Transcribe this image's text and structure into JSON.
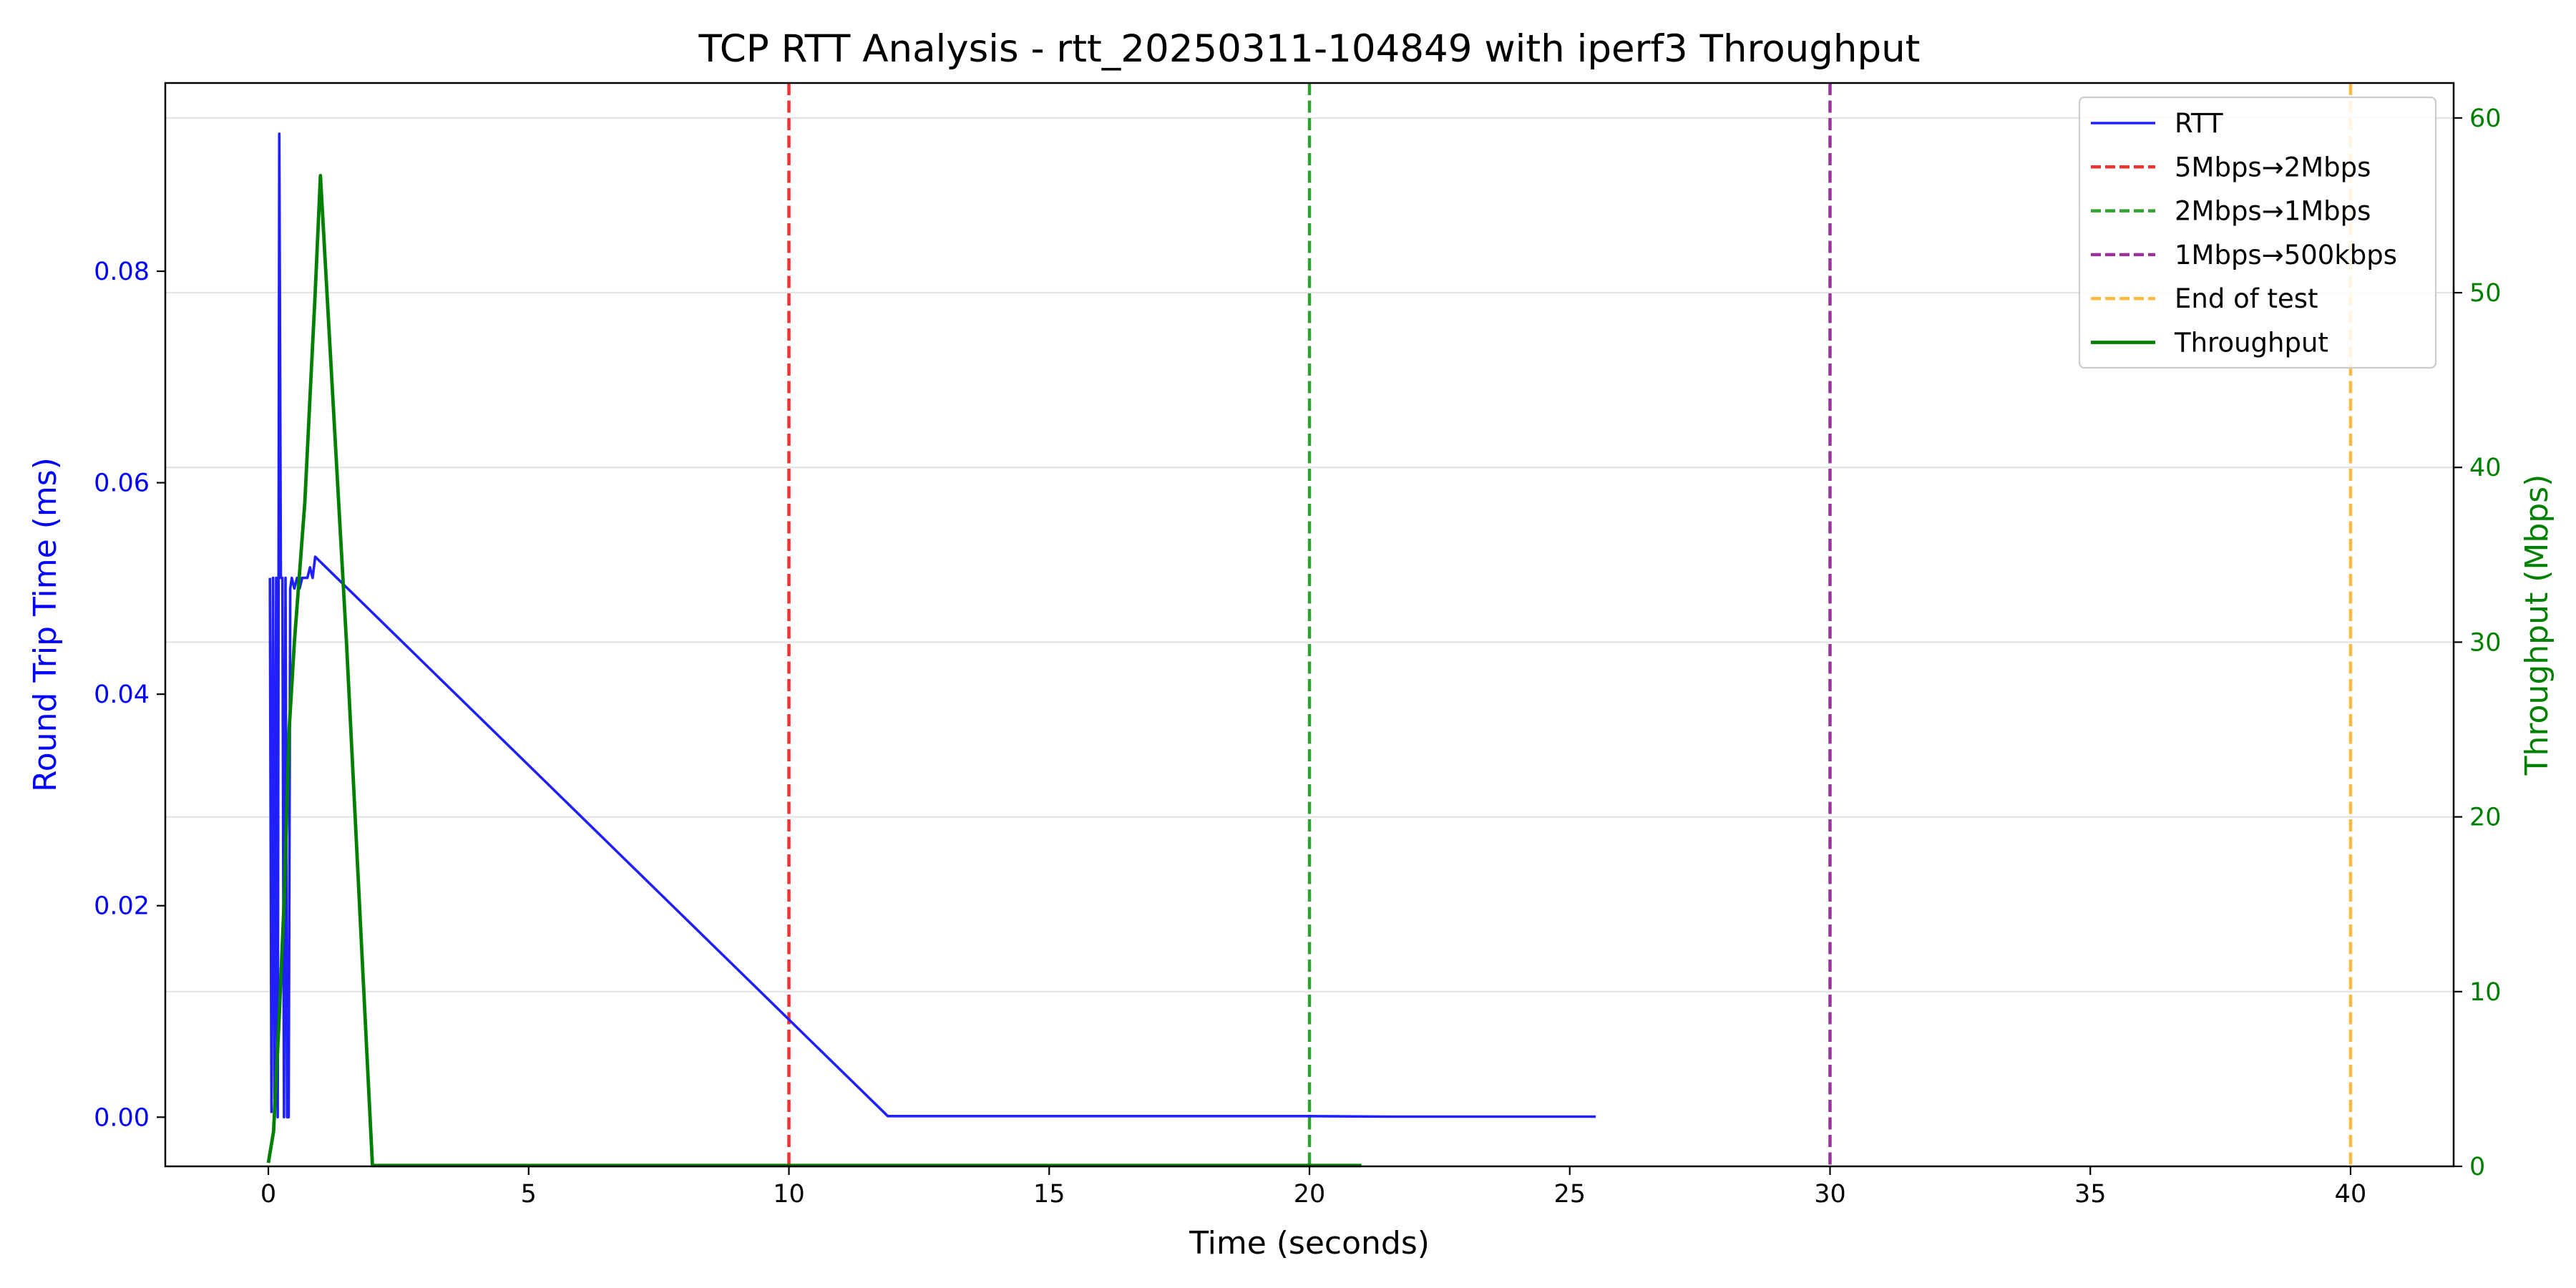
{
  "chart_data": {
    "type": "line",
    "title": "TCP RTT Analysis - rtt_20250311-104849 with iperf3 Throughput",
    "xlabel": "Time (seconds)",
    "ylabel_left": "Round Trip Time (ms)",
    "ylabel_right": "Throughput (Mbps)",
    "xlim": [
      -1.98,
      41.98
    ],
    "ylim_left": [
      -0.00465,
      0.0978
    ],
    "ylim_right": [
      0,
      62
    ],
    "x_ticks": [
      0,
      5,
      10,
      15,
      20,
      25,
      30,
      35,
      40
    ],
    "y_left_ticks": [
      0.0,
      0.02,
      0.04,
      0.06,
      0.08
    ],
    "y_left_tick_labels": [
      "0.00",
      "0.02",
      "0.04",
      "0.06",
      "0.08"
    ],
    "y_right_ticks": [
      0,
      10,
      20,
      30,
      40,
      50,
      60
    ],
    "grid": true,
    "legend_position": "top-right",
    "colors": {
      "rtt": "#2020ff",
      "throughput": "#008000",
      "left_axis": "#0000ff",
      "right_axis": "#008000"
    },
    "series": [
      {
        "name": "RTT",
        "axis": "left",
        "color": "#2020ff",
        "x": [
          0.03,
          0.06,
          0.09,
          0.12,
          0.15,
          0.18,
          0.21,
          0.24,
          0.27,
          0.3,
          0.33,
          0.36,
          0.39,
          0.42,
          0.45,
          0.5,
          0.55,
          0.6,
          0.65,
          0.7,
          0.75,
          0.8,
          0.85,
          0.9,
          11.9,
          15.0,
          20.0,
          21.5,
          25.5
        ],
        "y": [
          0.051,
          0.0005,
          0.051,
          0.0,
          0.051,
          0.0,
          0.093,
          0.051,
          0.051,
          0.0,
          0.051,
          0.0,
          0.0,
          0.05,
          0.051,
          0.05,
          0.051,
          0.05,
          0.051,
          0.051,
          0.051,
          0.052,
          0.051,
          0.053,
          0.0001,
          0.0001,
          0.0001,
          5e-05,
          5e-05
        ]
      },
      {
        "name": "Throughput",
        "axis": "right",
        "color": "#008000",
        "x": [
          0.0,
          0.1,
          0.2,
          0.3,
          0.4,
          0.5,
          0.6,
          0.7,
          0.8,
          0.9,
          1.0,
          1.5,
          2.0,
          5.0,
          10.0,
          15.0,
          20.0,
          21.0
        ],
        "y": [
          0.2,
          2.0,
          8.0,
          15.0,
          25.0,
          30.0,
          34.0,
          38.0,
          44.0,
          50.0,
          56.7,
          30.0,
          0.05,
          0.05,
          0.05,
          0.05,
          0.05,
          0.05
        ]
      }
    ],
    "markers": [
      {
        "name": "5Mbps→2Mbps",
        "x": 10,
        "color": "#ee3333"
      },
      {
        "name": "2Mbps→1Mbps",
        "x": 20,
        "color": "#33a033"
      },
      {
        "name": "1Mbps→500kbps",
        "x": 30,
        "color": "#993399"
      },
      {
        "name": "End of test",
        "x": 40,
        "color": "#ffb840"
      }
    ],
    "legend": [
      "RTT",
      "5Mbps→2Mbps",
      "2Mbps→1Mbps",
      "1Mbps→500kbps",
      "End of test",
      "Throughput"
    ]
  }
}
